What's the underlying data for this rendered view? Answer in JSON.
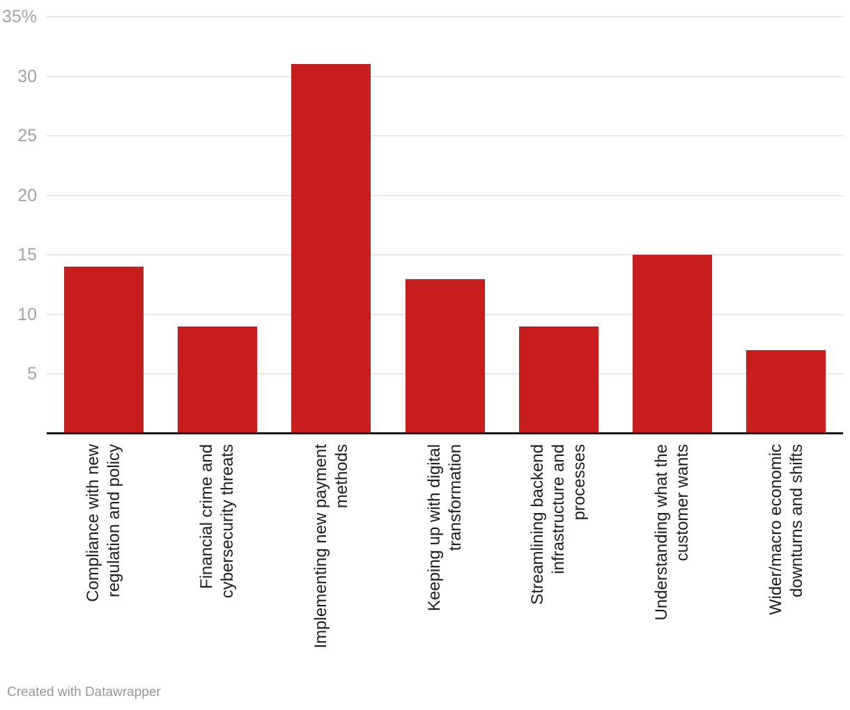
{
  "chart_data": {
    "type": "bar",
    "title": "",
    "xlabel": "",
    "ylabel": "",
    "categories": [
      "Compliance with new regulation and policy",
      "Financial crime and cybersecurity threats",
      "Implementing new payment methods",
      "Keeping up with digital transformation",
      "Streamlining backend infrastructure and processes",
      "Understanding what the customer wants",
      "Wider/macro economic downturns and shifts"
    ],
    "category_label_lines": [
      [
        "Compliance with new",
        "regulation and policy"
      ],
      [
        "Financial crime and",
        "cybersecurity threats"
      ],
      [
        "Implementing new payment",
        "methods"
      ],
      [
        "Keeping up with digital",
        "transformation"
      ],
      [
        "Streamlining backend",
        "infrastructure and",
        "processes"
      ],
      [
        "Understanding what the",
        "customer wants"
      ],
      [
        "Wider/macro economic",
        "downturns and shifts"
      ]
    ],
    "values": [
      14,
      9,
      31,
      13,
      9,
      15,
      7
    ],
    "value_unit": "%",
    "ylim": [
      0,
      35
    ],
    "yticks": [
      5,
      10,
      15,
      20,
      25,
      30,
      35
    ],
    "ytick_labels": [
      "5",
      "10",
      "15",
      "20",
      "25",
      "30",
      "35%"
    ],
    "grid": "horizontal",
    "legend": "none",
    "bar_color": "#c71e1d",
    "axis_tick_color": "#a3a3a3",
    "category_label_color": "#1d1d1d",
    "gridline_color": "#e8e8e8",
    "baseline_color": "#151515"
  },
  "footer": {
    "attribution": "Created with Datawrapper"
  }
}
